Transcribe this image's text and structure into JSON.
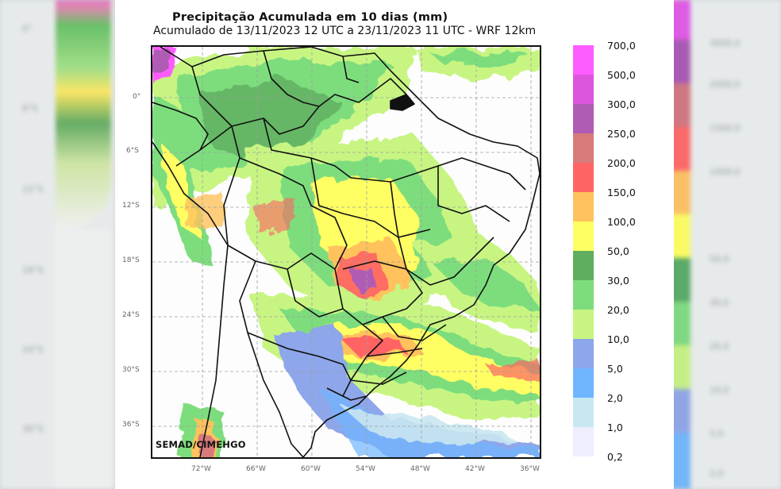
{
  "title": "Precipitação Acumulada em 10 dias (mm)",
  "subtitle": "Acumulado de 13/11/2023 12 UTC a 23/11/2023 11 UTC - WRF 12km",
  "credit": "SEMAD/CIMEHGO",
  "latitude_labels": [
    "0°",
    "6°S",
    "12°S",
    "18°S",
    "24°S",
    "30°S",
    "36°S"
  ],
  "longitude_labels": [
    "72°W",
    "66°W",
    "60°W",
    "54°W",
    "48°W",
    "42°W",
    "36°W"
  ],
  "legend": {
    "labels": [
      "700,0",
      "500,0",
      "300,0",
      "250,0",
      "200,0",
      "150,0",
      "100,0",
      "50,0",
      "30,0",
      "20,0",
      "10,0",
      "5,0",
      "2,0",
      "1,0",
      "0,2"
    ],
    "colors": [
      "#ff5cff",
      "#dd55dd",
      "#b05cb5",
      "#d97a7a",
      "#ff6464",
      "#ffc25c",
      "#ffff64",
      "#5fae5f",
      "#7ddd7d",
      "#c8f582",
      "#8ea6ea",
      "#6fb6ff",
      "#c9e7f1",
      "#eeeeff"
    ]
  },
  "background_ticks_left": [
    "0°",
    "6°S",
    "12°S",
    "18°S",
    "24°S",
    "30°S",
    "36°S"
  ],
  "background_ticks_right": [
    "3000,0",
    "2000,0",
    "1500,0",
    "1000,0",
    "50,0",
    "30,0",
    "20,0",
    "10,0",
    "5,0",
    "2,0"
  ]
}
